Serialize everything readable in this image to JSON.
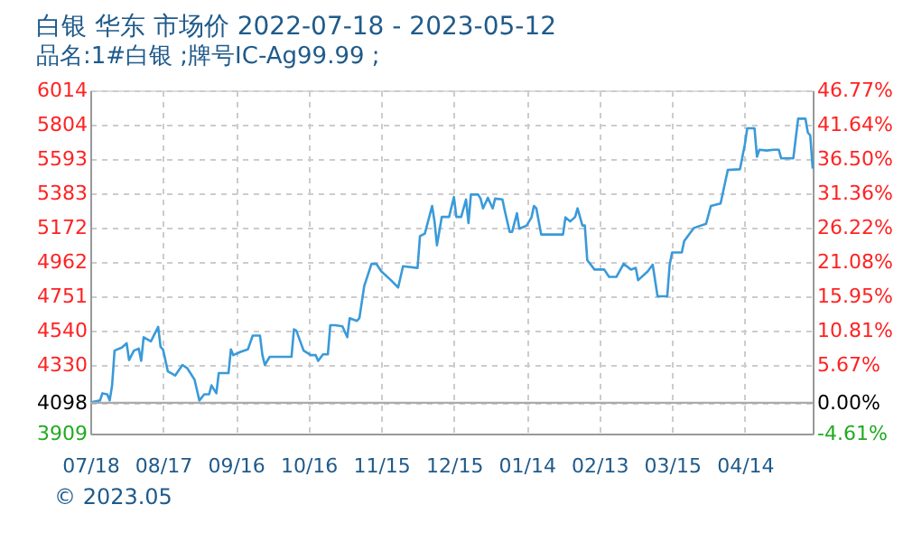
{
  "chart_data": {
    "type": "line",
    "title": "白银 华东 市场价 2022-07-18 - 2023-05-12",
    "subtitle": "品名:1#白银 ;牌号IC-Ag99.99 ;",
    "x": [
      "2022-07-18",
      "2022-07-22",
      "2022-07-23",
      "2022-07-25",
      "2022-07-26",
      "2022-07-27",
      "2022-07-28",
      "2022-07-31",
      "2022-08-02",
      "2022-08-03",
      "2022-08-05",
      "2022-08-07",
      "2022-08-08",
      "2022-08-09",
      "2022-08-12",
      "2022-08-15",
      "2022-08-16",
      "2022-08-17",
      "2022-08-19",
      "2022-08-22",
      "2022-08-25",
      "2022-08-27",
      "2022-08-30",
      "2022-09-01",
      "2022-09-03",
      "2022-09-05",
      "2022-09-06",
      "2022-09-08",
      "2022-09-09",
      "2022-09-13",
      "2022-09-14",
      "2022-09-15",
      "2022-09-18",
      "2022-09-21",
      "2022-09-23",
      "2022-09-26",
      "2022-09-27",
      "2022-09-28",
      "2022-09-30",
      "2022-10-09",
      "2022-10-10",
      "2022-10-11",
      "2022-10-14",
      "2022-10-17",
      "2022-10-19",
      "2022-10-20",
      "2022-10-22",
      "2022-10-24",
      "2022-10-25",
      "2022-10-27",
      "2022-10-30",
      "2022-11-01",
      "2022-11-02",
      "2022-11-05",
      "2022-11-06",
      "2022-11-08",
      "2022-11-11",
      "2022-11-13",
      "2022-11-15",
      "2022-11-19",
      "2022-11-22",
      "2022-11-24",
      "2022-11-30",
      "2022-12-01",
      "2022-12-03",
      "2022-12-06",
      "2022-12-07",
      "2022-12-08",
      "2022-12-10",
      "2022-12-13",
      "2022-12-15",
      "2022-12-16",
      "2022-12-18",
      "2022-12-20",
      "2022-12-21",
      "2022-12-22",
      "2022-12-25",
      "2022-12-26",
      "2022-12-27",
      "2022-12-29",
      "2022-12-31",
      "2023-01-01",
      "2023-01-04",
      "2023-01-05",
      "2023-01-07",
      "2023-01-08",
      "2023-01-10",
      "2023-01-11",
      "2023-01-14",
      "2023-01-16",
      "2023-01-17",
      "2023-01-18",
      "2023-01-20",
      "2023-01-29",
      "2023-01-30",
      "2023-02-01",
      "2023-02-03",
      "2023-02-04",
      "2023-02-06",
      "2023-02-07",
      "2023-02-08",
      "2023-02-11",
      "2023-02-15",
      "2023-02-17",
      "2023-02-20",
      "2023-02-23",
      "2023-02-26",
      "2023-02-28",
      "2023-03-01",
      "2023-03-05",
      "2023-03-07",
      "2023-03-09",
      "2023-03-13",
      "2023-03-14",
      "2023-03-15",
      "2023-03-19",
      "2023-03-20",
      "2023-03-22",
      "2023-03-24",
      "2023-03-29",
      "2023-03-31",
      "2023-04-04",
      "2023-04-07",
      "2023-04-12",
      "2023-04-14",
      "2023-04-15",
      "2023-04-18",
      "2023-04-19",
      "2023-04-20",
      "2023-04-23",
      "2023-04-26",
      "2023-04-28",
      "2023-04-29",
      "2023-05-04",
      "2023-05-06",
      "2023-05-09",
      "2023-05-10",
      "2023-05-11",
      "2023-05-12"
    ],
    "series": [
      {
        "color": "#3a9ad9",
        "values": [
          4100,
          4112,
          4156,
          4150,
          4112,
          4205,
          4418,
          4437,
          4463,
          4360,
          4418,
          4430,
          4355,
          4500,
          4475,
          4563,
          4440,
          4425,
          4290,
          4265,
          4330,
          4310,
          4240,
          4112,
          4150,
          4150,
          4205,
          4156,
          4280,
          4280,
          4425,
          4390,
          4410,
          4425,
          4510,
          4510,
          4390,
          4330,
          4380,
          4380,
          4548,
          4540,
          4418,
          4390,
          4390,
          4355,
          4395,
          4395,
          4574,
          4574,
          4567,
          4500,
          4617,
          4600,
          4617,
          4814,
          4950,
          4950,
          4905,
          4850,
          4805,
          4935,
          4925,
          5120,
          5135,
          5305,
          5210,
          5064,
          5238,
          5238,
          5360,
          5238,
          5238,
          5345,
          5200,
          5375,
          5375,
          5350,
          5290,
          5355,
          5290,
          5350,
          5345,
          5275,
          5146,
          5146,
          5260,
          5165,
          5185,
          5235,
          5305,
          5290,
          5130,
          5130,
          5235,
          5210,
          5238,
          5290,
          5185,
          5185,
          4973,
          4915,
          4915,
          4870,
          4870,
          4950,
          4915,
          4925,
          4850,
          4905,
          4945,
          4751,
          4751,
          4945,
          5020,
          5020,
          5090,
          5130,
          5170,
          5195,
          5305,
          5320,
          5526,
          5530,
          5682,
          5781,
          5781,
          5607,
          5650,
          5645,
          5650,
          5650,
          5597,
          5597,
          5840,
          5840,
          5755,
          5737,
          5534
        ]
      }
    ],
    "ylim": [
      3909,
      6014
    ],
    "yticks": [
      3909,
      4098,
      4330,
      4540,
      4751,
      4962,
      5172,
      5383,
      5593,
      5804,
      6014
    ],
    "y2lim": [
      -4.61,
      46.77
    ],
    "y2ticks": [
      {
        "value": -4.61,
        "label": "-4.61%"
      },
      {
        "value": 0,
        "label": "0.00%"
      },
      {
        "value": 5.67,
        "label": "5.67%"
      },
      {
        "value": 10.81,
        "label": "10.81%"
      },
      {
        "value": 15.95,
        "label": "15.95%"
      },
      {
        "value": 21.08,
        "label": "21.08%"
      },
      {
        "value": 26.22,
        "label": "26.22%"
      },
      {
        "value": 31.36,
        "label": "31.36%"
      },
      {
        "value": 36.5,
        "label": "36.50%"
      },
      {
        "value": 41.64,
        "label": "41.64%"
      },
      {
        "value": 46.77,
        "label": "46.77%"
      }
    ],
    "xlim": [
      "2022-07-18",
      "2023-05-12"
    ],
    "xticks": [
      {
        "value": "2022-07-18",
        "label": "07/18"
      },
      {
        "value": "2022-08-17",
        "label": "08/17"
      },
      {
        "value": "2022-09-16",
        "label": "09/16"
      },
      {
        "value": "2022-10-16",
        "label": "10/16"
      },
      {
        "value": "2022-11-15",
        "label": "11/15"
      },
      {
        "value": "2022-12-15",
        "label": "12/15"
      },
      {
        "value": "2023-01-14",
        "label": "01/14"
      },
      {
        "value": "2023-02-13",
        "label": "02/13"
      },
      {
        "value": "2023-03-15",
        "label": "03/15"
      },
      {
        "value": "2023-04-14",
        "label": "04/14"
      }
    ],
    "ref_lines": [
      {
        "axis": "y",
        "value": 4098,
        "color": "#aaaaaa"
      }
    ],
    "grid": true,
    "marker": "none",
    "line_style": "solid",
    "annotations": [
      "© 2023.05"
    ]
  }
}
